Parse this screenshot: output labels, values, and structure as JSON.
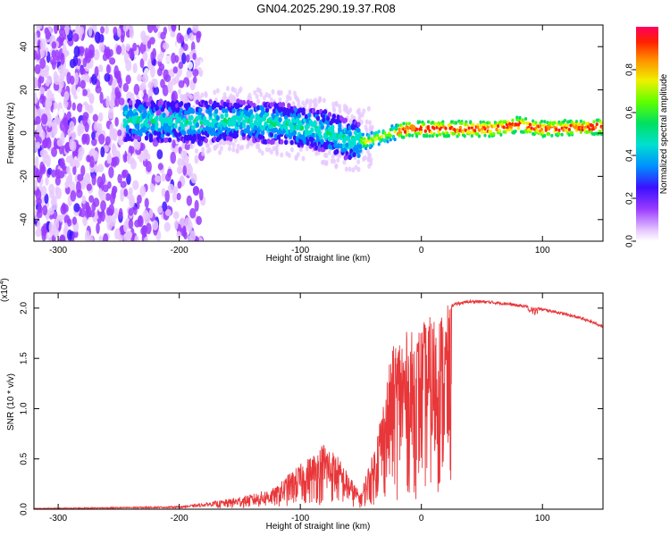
{
  "figure": {
    "title": "GN04.2025.290.19.37.R08"
  },
  "chart_data": [
    {
      "type": "heatmap",
      "title": "GN04.2025.290.19.37.R08",
      "xlabel": "Height of straight line (km)",
      "ylabel": "Frequency (Hz)",
      "xlim": [
        -320,
        150
      ],
      "ylim": [
        -50,
        50
      ],
      "xticks": [
        -300,
        -200,
        -100,
        0,
        100
      ],
      "xtick_labels": [
        "-300",
        "-200",
        "-100",
        "0",
        "100"
      ],
      "yticks": [
        -40,
        -20,
        0,
        20,
        40
      ],
      "ytick_labels": [
        "-40",
        "-20",
        "0",
        "20",
        "40"
      ],
      "colorbar": {
        "label": "Normalized spectral amplitude",
        "range": [
          0,
          1
        ],
        "ticks": [
          0.0,
          0.2,
          0.4,
          0.6,
          0.8
        ],
        "tick_labels": [
          "0.0",
          "0.2",
          "0.4",
          "0.6",
          "0.8"
        ]
      },
      "ridge": {
        "description_points": [
          {
            "x": -240,
            "freq": 6
          },
          {
            "x": -200,
            "freq": 5
          },
          {
            "x": -150,
            "freq": 6
          },
          {
            "x": -110,
            "freq": 4
          },
          {
            "x": -80,
            "freq": 1
          },
          {
            "x": -60,
            "freq": -3
          },
          {
            "x": -45,
            "freq": -4
          },
          {
            "x": -25,
            "freq": 0
          },
          {
            "x": -10,
            "freq": 2
          },
          {
            "x": 0,
            "freq": 2
          },
          {
            "x": 60,
            "freq": 2
          },
          {
            "x": 80,
            "freq": 4
          },
          {
            "x": 100,
            "freq": 2
          },
          {
            "x": 150,
            "freq": 3
          }
        ]
      }
    },
    {
      "type": "line",
      "xlabel": "Height of straight line (km)",
      "ylabel": "SNR (10 * v/v)",
      "scale_label": "(x10",
      "scale_exponent": "4",
      "scale_close": ")",
      "xlim": [
        -320,
        150
      ],
      "ylim": [
        0,
        2.15
      ],
      "xticks": [
        -300,
        -200,
        -100,
        0,
        100
      ],
      "xtick_labels": [
        "-300",
        "-200",
        "-100",
        "0",
        "100"
      ],
      "yticks": [
        0.0,
        0.5,
        1.0,
        1.5,
        2.0
      ],
      "ytick_labels": [
        "0.0",
        "0.5",
        "1.0",
        "1.5",
        "2.0"
      ],
      "color": "#e8373a",
      "envelope_x": [
        -320,
        -250,
        -200,
        -180,
        -160,
        -140,
        -120,
        -110,
        -100,
        -90,
        -80,
        -70,
        -60,
        -50,
        -45,
        -40,
        -35,
        -30,
        -25,
        -20,
        -15,
        -10,
        -5,
        0,
        10,
        20,
        30,
        40,
        50,
        60,
        70,
        80,
        90,
        100,
        110,
        120,
        130,
        140,
        150
      ],
      "envelope_y": [
        0.01,
        0.02,
        0.03,
        0.06,
        0.1,
        0.15,
        0.22,
        0.35,
        0.45,
        0.55,
        0.68,
        0.55,
        0.35,
        0.15,
        0.4,
        0.55,
        0.9,
        1.2,
        1.55,
        1.75,
        1.8,
        1.75,
        1.8,
        1.85,
        1.95,
        2.02,
        2.06,
        2.08,
        2.08,
        2.07,
        2.06,
        2.04,
        2.03,
        2.0,
        1.98,
        1.95,
        1.92,
        1.88,
        1.83
      ]
    }
  ]
}
